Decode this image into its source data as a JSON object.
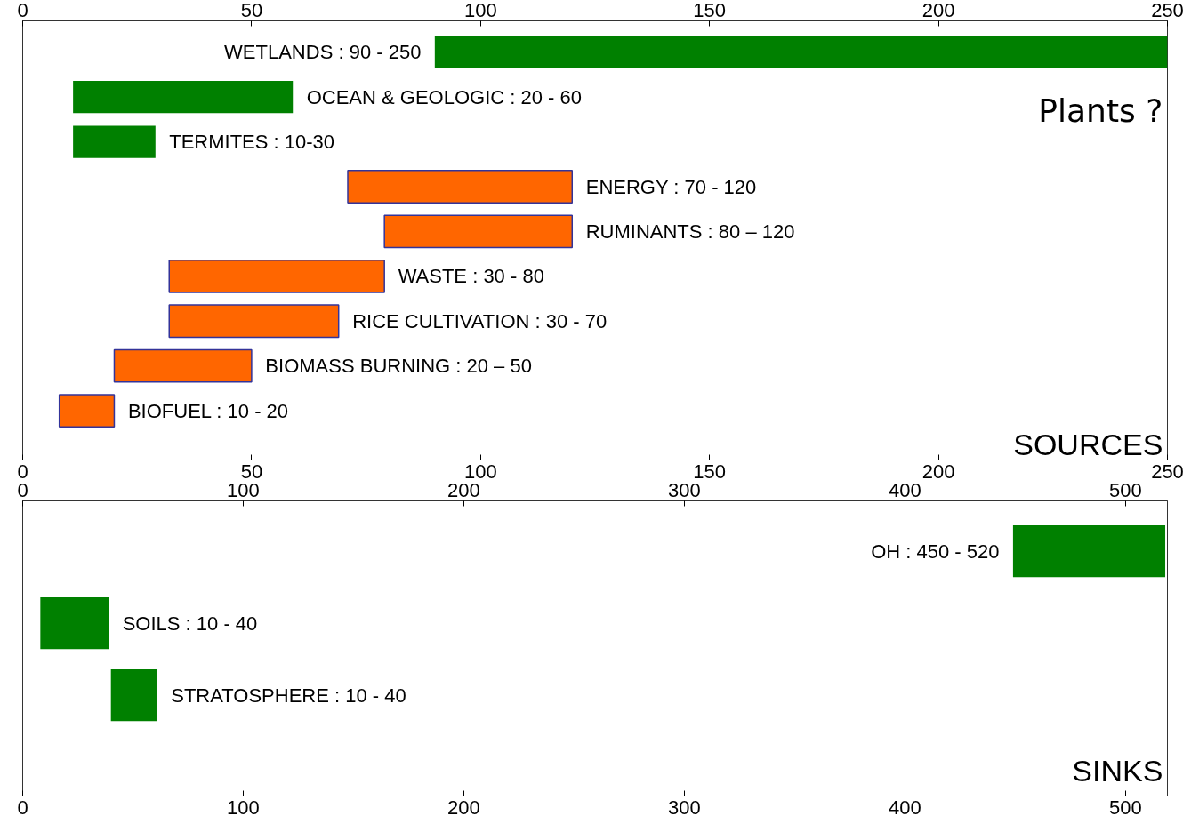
{
  "chart_data": [
    {
      "type": "bar",
      "orientation": "horizontal",
      "tick_labels": "x",
      "categories": [
        "WETLANDS : 90 - 250",
        "OCEAN & GEOLOGIC : 20 - 60",
        "TERMITES : 10-30",
        "ENERGY : 70 - 120",
        "RUMINANTS : 80 – 120",
        "WASTE : 30 - 80",
        "RICE CULTIVATION : 30 - 70",
        "BIOMASS BURNING : 20 – 50",
        "BIOFUEL : 10 - 20"
      ],
      "base": [
        90,
        11,
        11,
        71,
        79,
        32,
        32,
        20,
        8
      ],
      "values": [
        160,
        48,
        18,
        49,
        41,
        47,
        37,
        30,
        12
      ],
      "colors": [
        "#008000",
        "#008000",
        "#008000",
        "#ff6600",
        "#ff6600",
        "#ff6600",
        "#ff6600",
        "#ff6600",
        "#ff6600"
      ],
      "xlim": [
        0,
        250
      ],
      "xticks": [
        0,
        50,
        100,
        150,
        200,
        250
      ],
      "x2lim": [
        0,
        250
      ],
      "x2ticks": [
        0,
        50,
        100,
        150,
        200,
        250
      ],
      "annotations": [
        "Plants ?",
        "SOURCES"
      ]
    },
    {
      "type": "bar",
      "orientation": "horizontal",
      "tick_labels": "x",
      "categories": [
        "OH : 450 - 520",
        "SOILS : 10 - 40",
        "STRATOSPHERE : 10 - 40"
      ],
      "base": [
        449,
        8,
        40
      ],
      "values": [
        69,
        31,
        21
      ],
      "colors": [
        "#008000",
        "#008000",
        "#008000"
      ],
      "xlim": [
        0,
        519
      ],
      "xticks": [
        0,
        100,
        200,
        300,
        400,
        500
      ],
      "x2lim": [
        0,
        519
      ],
      "x2ticks": [
        0,
        100,
        200,
        300,
        400,
        500
      ],
      "annotations": [
        "SINKS"
      ]
    }
  ]
}
